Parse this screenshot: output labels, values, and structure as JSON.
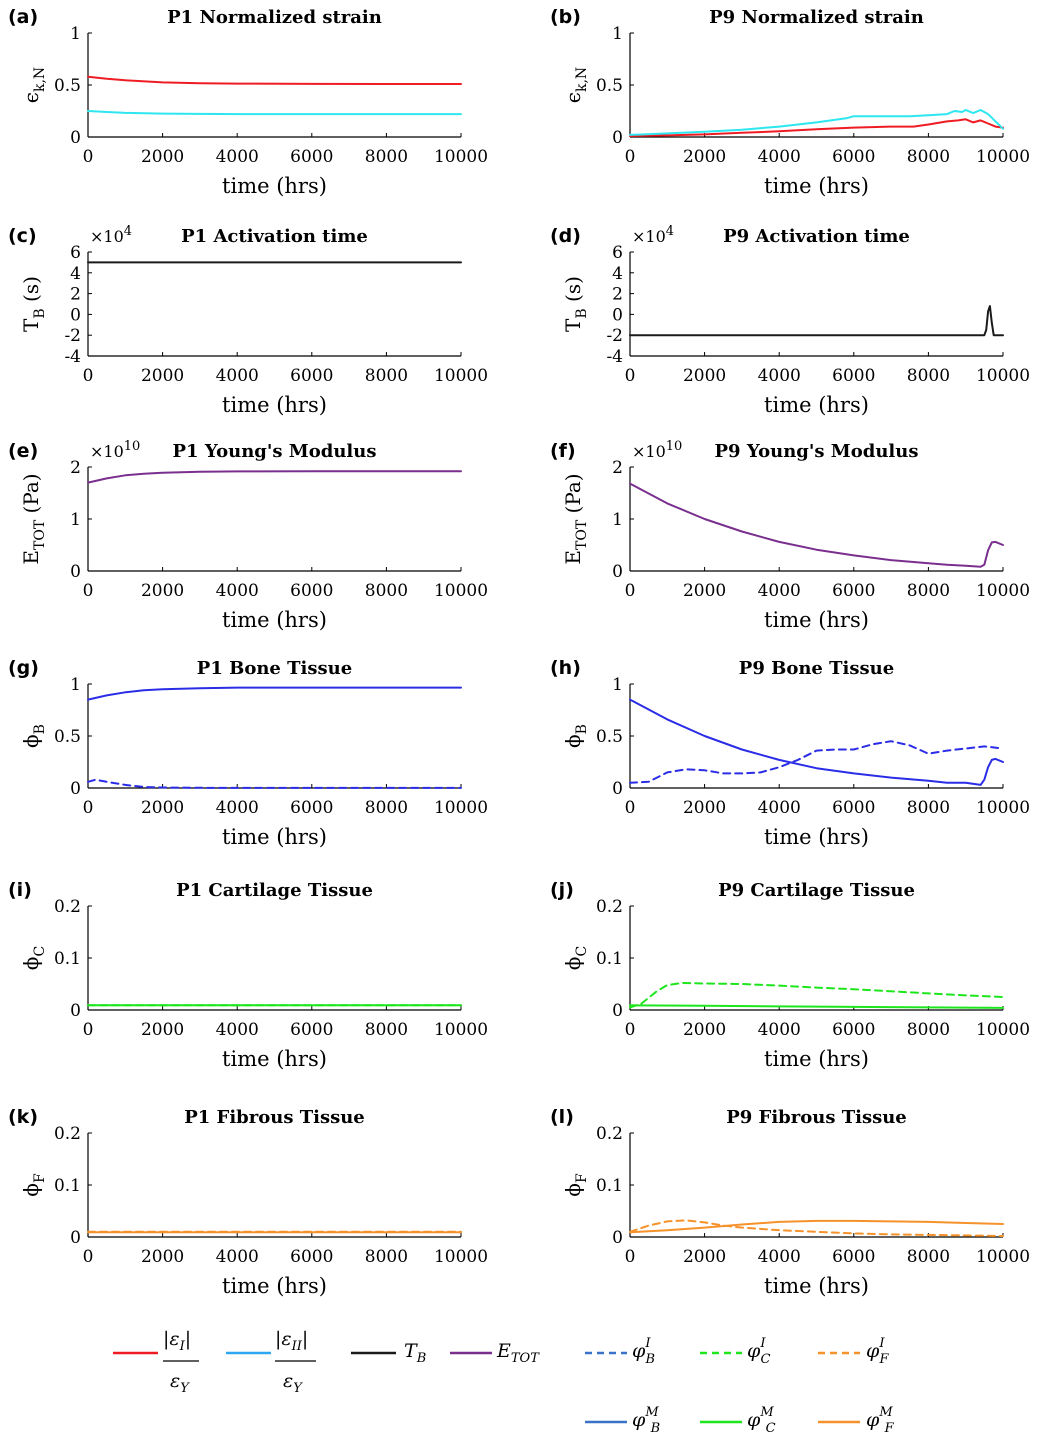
{
  "colors": {
    "strain_I": "#ef1c24",
    "strain_II": "#2ee6f0",
    "activation": "#1a1a1a",
    "modulus": "#7a2f8e",
    "bone": "#2b2de6",
    "cartilage": "#1de61d",
    "fibrous": "#f5922b",
    "legend_bone": "#3a72c8",
    "legend_cartilage": "#1de61d",
    "legend_fibrous": "#f5922b"
  },
  "xaxis": {
    "label": "time (hrs)",
    "ticks": [
      "0",
      "2000",
      "4000",
      "6000",
      "8000",
      "10000"
    ]
  },
  "legend": {
    "strain_I": {
      "num": "|ε",
      "num_sub": "I",
      "num_end": "|",
      "den": "ε",
      "den_sub": "Y"
    },
    "strain_II": {
      "num": "|ε",
      "num_sub": "II",
      "num_end": "|",
      "den": "ε",
      "den_sub": "Y"
    },
    "activation": {
      "main": "T",
      "sub": "B"
    },
    "modulus": {
      "main": "E",
      "sub": "TOT"
    },
    "bone_I": {
      "main": "φ",
      "sub": "B",
      "sup": "I"
    },
    "cartilage_I": {
      "main": "φ",
      "sub": "C",
      "sup": "I"
    },
    "fibrous_I": {
      "main": "φ",
      "sub": "F",
      "sup": "I"
    },
    "bone_M": {
      "main": "φ",
      "sub": "B",
      "sup": "M"
    },
    "cartilage_M": {
      "main": "φ",
      "sub": "C",
      "sup": "M"
    },
    "fibrous_M": {
      "main": "φ",
      "sub": "F",
      "sup": "M"
    }
  },
  "chart_data": [
    {
      "id": "a",
      "panel_label": "(a)",
      "title": "P1 Normalized strain",
      "type": "line",
      "ylabel": "ϵ",
      "ylabel_sub": "k,N",
      "multiplier": "",
      "multiplier_exp": "",
      "ylim": [
        0,
        1
      ],
      "yticks": [
        "0",
        "0.5",
        "1"
      ],
      "xlim": [
        0,
        10000
      ],
      "series": [
        {
          "key": "strain_I",
          "color": "#ef1c24",
          "dashed": false,
          "x": [
            0,
            500,
            1000,
            2000,
            3000,
            4000,
            6000,
            8000,
            10000
          ],
          "y": [
            0.58,
            0.56,
            0.545,
            0.525,
            0.517,
            0.513,
            0.511,
            0.51,
            0.51
          ]
        },
        {
          "key": "strain_II",
          "color": "#2ee6f0",
          "dashed": false,
          "x": [
            0,
            500,
            1000,
            2000,
            3000,
            4000,
            6000,
            8000,
            10000
          ],
          "y": [
            0.25,
            0.24,
            0.232,
            0.225,
            0.222,
            0.22,
            0.22,
            0.22,
            0.22
          ]
        }
      ]
    },
    {
      "id": "b",
      "panel_label": "(b)",
      "title": "P9 Normalized strain",
      "type": "line",
      "ylabel": "ϵ",
      "ylabel_sub": "k,N",
      "multiplier": "",
      "multiplier_exp": "",
      "ylim": [
        0,
        1
      ],
      "yticks": [
        "0",
        "0.5",
        "1"
      ],
      "xlim": [
        0,
        10000
      ],
      "series": [
        {
          "key": "strain_I",
          "color": "#ef1c24",
          "dashed": false,
          "x": [
            0,
            1000,
            2000,
            3000,
            4000,
            5000,
            6000,
            7000,
            7600,
            8000,
            8500,
            8800,
            9000,
            9200,
            9400,
            9600,
            9800,
            10000
          ],
          "y": [
            0.01,
            0.015,
            0.025,
            0.04,
            0.055,
            0.075,
            0.09,
            0.1,
            0.1,
            0.12,
            0.15,
            0.16,
            0.17,
            0.14,
            0.16,
            0.13,
            0.1,
            0.09
          ]
        },
        {
          "key": "strain_II",
          "color": "#2ee6f0",
          "dashed": false,
          "x": [
            0,
            1000,
            2000,
            3000,
            4000,
            5000,
            5800,
            6000,
            6500,
            7000,
            7500,
            8000,
            8500,
            8700,
            8900,
            9000,
            9200,
            9400,
            9600,
            9800,
            10000
          ],
          "y": [
            0.02,
            0.035,
            0.05,
            0.07,
            0.1,
            0.14,
            0.18,
            0.2,
            0.2,
            0.2,
            0.2,
            0.21,
            0.22,
            0.25,
            0.24,
            0.26,
            0.23,
            0.26,
            0.22,
            0.15,
            0.08
          ]
        }
      ]
    },
    {
      "id": "c",
      "panel_label": "(c)",
      "title": "P1 Activation time",
      "type": "line",
      "ylabel": "T",
      "ylabel_sub": "B",
      "ylabel_unit": " (s)",
      "multiplier": "×10",
      "multiplier_exp": "4",
      "ylim": [
        -4,
        6
      ],
      "yticks": [
        "-4",
        "-2",
        "0",
        "2",
        "4",
        "6"
      ],
      "xlim": [
        0,
        10000
      ],
      "series": [
        {
          "key": "activation",
          "color": "#1a1a1a",
          "dashed": false,
          "x": [
            0,
            10000
          ],
          "y": [
            5,
            5
          ]
        }
      ]
    },
    {
      "id": "d",
      "panel_label": "(d)",
      "title": "P9 Activation time",
      "type": "line",
      "ylabel": "T",
      "ylabel_sub": "B",
      "ylabel_unit": " (s)",
      "multiplier": "×10",
      "multiplier_exp": "4",
      "ylim": [
        -4,
        6
      ],
      "yticks": [
        "-4",
        "-2",
        "0",
        "2",
        "4",
        "6"
      ],
      "xlim": [
        0,
        10000
      ],
      "series": [
        {
          "key": "activation",
          "color": "#1a1a1a",
          "dashed": false,
          "x": [
            0,
            9500,
            9550,
            9600,
            9650,
            9700,
            9750,
            10000
          ],
          "y": [
            -2,
            -2,
            -1.5,
            0.3,
            0.8,
            -0.8,
            -2,
            -2
          ]
        }
      ]
    },
    {
      "id": "e",
      "panel_label": "(e)",
      "title": "P1 Young's Modulus",
      "type": "line",
      "ylabel": "E",
      "ylabel_sub": "TOT",
      "ylabel_unit": " (Pa)",
      "multiplier": "×10",
      "multiplier_exp": "10",
      "ylim": [
        0,
        2
      ],
      "yticks": [
        "0",
        "1",
        "2"
      ],
      "xlim": [
        0,
        10000
      ],
      "series": [
        {
          "key": "modulus",
          "color": "#7a2f8e",
          "dashed": false,
          "x": [
            0,
            500,
            1000,
            1500,
            2000,
            3000,
            4000,
            6000,
            8000,
            10000
          ],
          "y": [
            1.7,
            1.78,
            1.84,
            1.87,
            1.89,
            1.91,
            1.915,
            1.92,
            1.92,
            1.92
          ]
        }
      ]
    },
    {
      "id": "f",
      "panel_label": "(f)",
      "title": "P9 Young's Modulus",
      "type": "line",
      "ylabel": "E",
      "ylabel_sub": "TOT",
      "ylabel_unit": " (Pa)",
      "multiplier": "×10",
      "multiplier_exp": "10",
      "ylim": [
        0,
        2
      ],
      "yticks": [
        "0",
        "1",
        "2"
      ],
      "xlim": [
        0,
        10000
      ],
      "series": [
        {
          "key": "modulus",
          "color": "#7a2f8e",
          "dashed": false,
          "x": [
            0,
            1000,
            2000,
            3000,
            4000,
            5000,
            6000,
            7000,
            8000,
            8500,
            9000,
            9400,
            9500,
            9600,
            9700,
            9800,
            10000
          ],
          "y": [
            1.68,
            1.3,
            1.0,
            0.76,
            0.56,
            0.41,
            0.3,
            0.21,
            0.15,
            0.12,
            0.1,
            0.08,
            0.12,
            0.4,
            0.55,
            0.56,
            0.5
          ]
        }
      ]
    },
    {
      "id": "g",
      "panel_label": "(g)",
      "title": "P1 Bone Tissue",
      "type": "line",
      "ylabel": "ϕ",
      "ylabel_sub": "B",
      "multiplier": "",
      "multiplier_exp": "",
      "ylim": [
        0,
        1
      ],
      "yticks": [
        "0",
        "0.5",
        "1"
      ],
      "xlim": [
        0,
        10000
      ],
      "series": [
        {
          "key": "bone_M",
          "color": "#2b2de6",
          "dashed": false,
          "x": [
            0,
            500,
            1000,
            1500,
            2000,
            3000,
            4000,
            6000,
            8000,
            10000
          ],
          "y": [
            0.85,
            0.89,
            0.92,
            0.94,
            0.95,
            0.96,
            0.965,
            0.965,
            0.965,
            0.965
          ]
        },
        {
          "key": "bone_I",
          "color": "#2b2de6",
          "dashed": true,
          "x": [
            0,
            200,
            500,
            1000,
            1500,
            2000,
            3000,
            4000,
            10000
          ],
          "y": [
            0.06,
            0.08,
            0.06,
            0.03,
            0.01,
            0.005,
            0.002,
            0.001,
            0.001
          ]
        }
      ]
    },
    {
      "id": "h",
      "panel_label": "(h)",
      "title": "P9 Bone Tissue",
      "type": "line",
      "ylabel": "ϕ",
      "ylabel_sub": "B",
      "multiplier": "",
      "multiplier_exp": "",
      "ylim": [
        0,
        1
      ],
      "yticks": [
        "0",
        "0.5",
        "1"
      ],
      "xlim": [
        0,
        10000
      ],
      "series": [
        {
          "key": "bone_M",
          "color": "#2b2de6",
          "dashed": false,
          "x": [
            0,
            1000,
            2000,
            3000,
            4000,
            5000,
            6000,
            7000,
            8000,
            8500,
            9000,
            9400,
            9500,
            9600,
            9700,
            9800,
            10000
          ],
          "y": [
            0.85,
            0.66,
            0.5,
            0.37,
            0.27,
            0.19,
            0.14,
            0.1,
            0.07,
            0.05,
            0.05,
            0.03,
            0.08,
            0.2,
            0.27,
            0.28,
            0.25
          ]
        },
        {
          "key": "bone_I",
          "color": "#2b2de6",
          "dashed": true,
          "x": [
            0,
            500,
            1000,
            1500,
            2000,
            2500,
            3000,
            3500,
            4000,
            4500,
            5000,
            5500,
            6000,
            6500,
            7000,
            7500,
            8000,
            8500,
            9000,
            9500,
            10000
          ],
          "y": [
            0.05,
            0.06,
            0.15,
            0.18,
            0.17,
            0.14,
            0.14,
            0.15,
            0.2,
            0.27,
            0.36,
            0.37,
            0.37,
            0.42,
            0.45,
            0.41,
            0.33,
            0.36,
            0.38,
            0.4,
            0.38
          ]
        }
      ]
    },
    {
      "id": "i",
      "panel_label": "(i)",
      "title": "P1 Cartilage Tissue",
      "type": "line",
      "ylabel": "ϕ",
      "ylabel_sub": "C",
      "multiplier": "",
      "multiplier_exp": "",
      "ylim": [
        0,
        0.2
      ],
      "yticks": [
        "0",
        "0.1",
        "0.2"
      ],
      "xlim": [
        0,
        10000
      ],
      "series": [
        {
          "key": "cartilage_M",
          "color": "#1de61d",
          "dashed": false,
          "x": [
            0,
            10000
          ],
          "y": [
            0.009,
            0.009
          ]
        },
        {
          "key": "cartilage_I",
          "color": "#1de61d",
          "dashed": true,
          "x": [
            0,
            10000
          ],
          "y": [
            0.009,
            0.009
          ]
        }
      ]
    },
    {
      "id": "j",
      "panel_label": "(j)",
      "title": "P9 Cartilage Tissue",
      "type": "line",
      "ylabel": "ϕ",
      "ylabel_sub": "C",
      "multiplier": "",
      "multiplier_exp": "",
      "ylim": [
        0,
        0.2
      ],
      "yticks": [
        "0",
        "0.1",
        "0.2"
      ],
      "xlim": [
        0,
        10000
      ],
      "series": [
        {
          "key": "cartilage_M",
          "color": "#1de61d",
          "dashed": false,
          "x": [
            0,
            2000,
            4000,
            6000,
            8000,
            10000
          ],
          "y": [
            0.009,
            0.008,
            0.007,
            0.006,
            0.005,
            0.004
          ]
        },
        {
          "key": "cartilage_I",
          "color": "#1de61d",
          "dashed": true,
          "x": [
            0,
            300,
            700,
            1000,
            1400,
            2000,
            3000,
            4000,
            5000,
            6000,
            7000,
            8000,
            9000,
            10000
          ],
          "y": [
            0.005,
            0.012,
            0.035,
            0.048,
            0.052,
            0.051,
            0.05,
            0.047,
            0.043,
            0.04,
            0.036,
            0.032,
            0.028,
            0.025
          ]
        }
      ]
    },
    {
      "id": "k",
      "panel_label": "(k)",
      "title": "P1 Fibrous Tissue",
      "type": "line",
      "ylabel": "ϕ",
      "ylabel_sub": "F",
      "multiplier": "",
      "multiplier_exp": "",
      "ylim": [
        0,
        0.2
      ],
      "yticks": [
        "0",
        "0.1",
        "0.2"
      ],
      "xlim": [
        0,
        10000
      ],
      "series": [
        {
          "key": "fibrous_M",
          "color": "#f5922b",
          "dashed": false,
          "x": [
            0,
            10000
          ],
          "y": [
            0.009,
            0.009
          ]
        },
        {
          "key": "fibrous_I",
          "color": "#f5922b",
          "dashed": true,
          "x": [
            0,
            10000
          ],
          "y": [
            0.01,
            0.01
          ]
        }
      ]
    },
    {
      "id": "l",
      "panel_label": "(l)",
      "title": "P9 Fibrous Tissue",
      "type": "line",
      "ylabel": "ϕ",
      "ylabel_sub": "F",
      "multiplier": "",
      "multiplier_exp": "",
      "ylim": [
        0,
        0.2
      ],
      "yticks": [
        "0",
        "0.1",
        "0.2"
      ],
      "xlim": [
        0,
        10000
      ],
      "series": [
        {
          "key": "fibrous_M",
          "color": "#f5922b",
          "dashed": false,
          "x": [
            0,
            1000,
            2000,
            3000,
            4000,
            5000,
            6000,
            7000,
            8000,
            9000,
            10000
          ],
          "y": [
            0.009,
            0.013,
            0.018,
            0.024,
            0.029,
            0.031,
            0.031,
            0.03,
            0.029,
            0.027,
            0.025
          ]
        },
        {
          "key": "fibrous_I",
          "color": "#f5922b",
          "dashed": true,
          "x": [
            0,
            500,
            1000,
            1500,
            2000,
            2500,
            3000,
            4000,
            5000,
            6000,
            7000,
            8000,
            9000,
            10000
          ],
          "y": [
            0.01,
            0.022,
            0.03,
            0.032,
            0.028,
            0.022,
            0.018,
            0.013,
            0.01,
            0.007,
            0.005,
            0.004,
            0.003,
            0.002
          ]
        }
      ]
    }
  ]
}
